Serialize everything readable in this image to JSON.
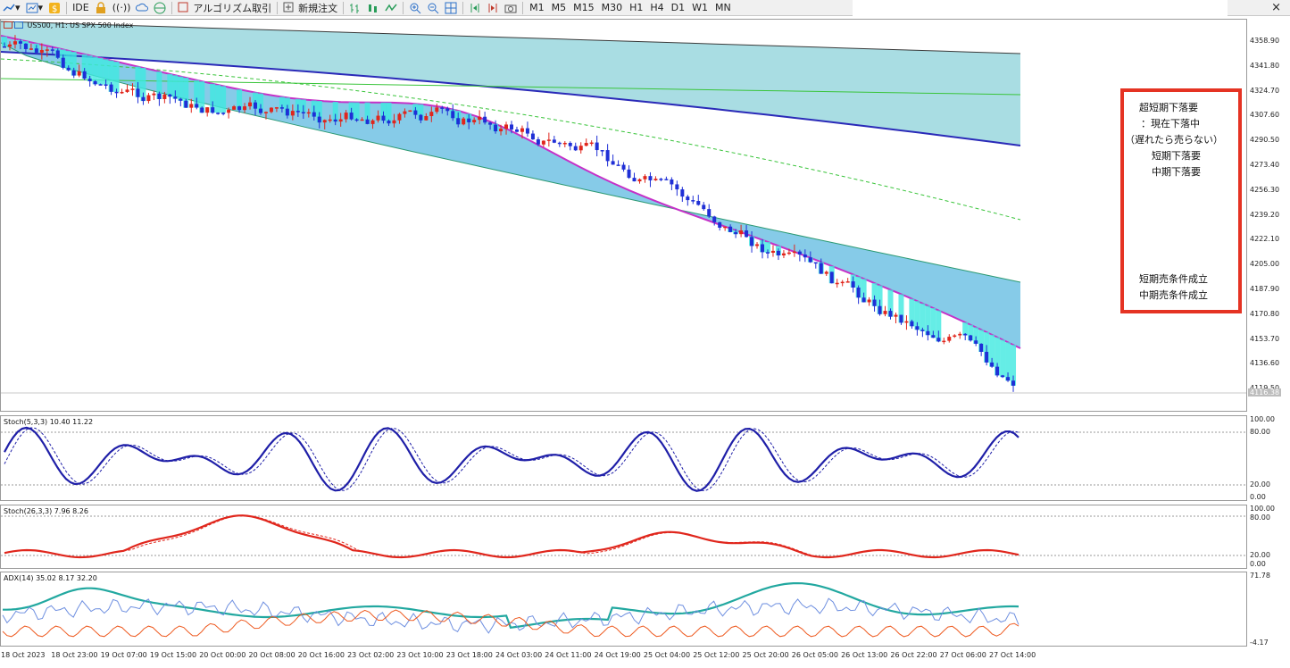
{
  "toolbar": {
    "ide_label": "IDE",
    "algo_label": "アルゴリズム取引",
    "new_order_label": "新規注文",
    "timeframes": [
      "M1",
      "M5",
      "M15",
      "M30",
      "H1",
      "H4",
      "D1",
      "W1",
      "MN"
    ],
    "close_glyph": "×"
  },
  "main_chart": {
    "title": "US500, H1:  US SPX 500 Index",
    "price_axis": [
      "4358.90",
      "4341.80",
      "4324.70",
      "4307.60",
      "4290.50",
      "4273.40",
      "4256.30",
      "4239.20",
      "4222.10",
      "4205.00",
      "4187.90",
      "4170.80",
      "4153.70",
      "4136.60",
      "4119.50"
    ],
    "current_price": "4116.38"
  },
  "stoch1": {
    "title": "Stoch(5,3,3) 10.40 11.22",
    "levels": [
      "100.00",
      "80.00",
      "20.00",
      "0.00"
    ]
  },
  "stoch2": {
    "title": "Stoch(26,3,3) 7.96 8.26",
    "levels": [
      "100.00",
      "80.00",
      "20.00",
      "0.00"
    ]
  },
  "adx": {
    "title": "ADX(14) 35.02 8.17 32.20",
    "levels": [
      "71.78",
      "-4.17"
    ]
  },
  "note": {
    "lines": [
      "超短期下落要",
      "：現在下落中",
      "（遅れたら売らない）",
      "短期下落要",
      "中期下落要",
      "短期売条件成立",
      "中期売条件成立"
    ]
  },
  "date_axis": [
    "18 Oct 2023",
    "18 Oct 23:00",
    "19 Oct 07:00",
    "19 Oct 15:00",
    "20 Oct 00:00",
    "20 Oct 08:00",
    "20 Oct 16:00",
    "23 Oct 02:00",
    "23 Oct 10:00",
    "23 Oct 18:00",
    "24 Oct 03:00",
    "24 Oct 11:00",
    "24 Oct 19:00",
    "25 Oct 04:00",
    "25 Oct 12:00",
    "25 Oct 20:00",
    "26 Oct 05:00",
    "26 Oct 13:00",
    "26 Oct 22:00",
    "27 Oct 06:00",
    "27 Oct 14:00"
  ],
  "colors": {
    "bull": "#e0261c",
    "bear": "#1f2fd6",
    "cloud_upper": "#a9dde3",
    "cloud_lower": "#86cbe8",
    "magenta_ma": "#c531c8",
    "blue_ma": "#2a2ab8",
    "stoch1": "#1f1fa8",
    "stoch2": "#e0261c",
    "adx": "#22a8a0"
  }
}
